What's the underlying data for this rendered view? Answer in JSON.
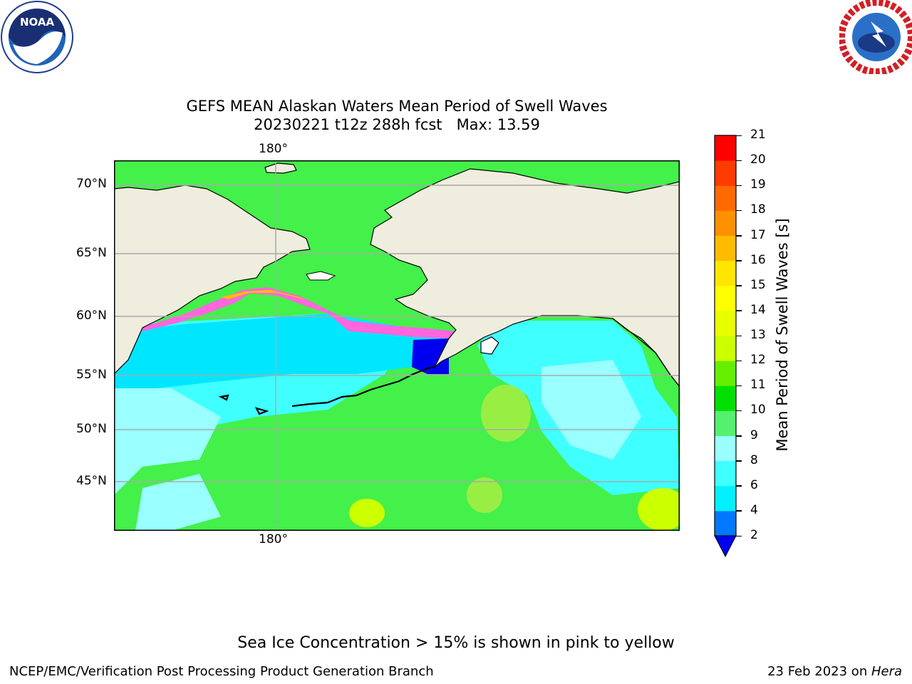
{
  "title": {
    "line1": "GEFS MEAN Alaskan Waters Mean Period of Swell Waves",
    "line2": "20230221 t12z 288h fcst   Max: 13.59"
  },
  "map": {
    "top_longitude_label": "180°",
    "bottom_longitude_label": "180°",
    "latitude_labels": [
      "70°N",
      "65°N",
      "60°N",
      "55°N",
      "50°N",
      "45°N"
    ]
  },
  "colorbar": {
    "label": "Mean Period of Swell Waves [s]",
    "ticks": [
      "2",
      "4",
      "6",
      "8",
      "9",
      "10",
      "11",
      "12",
      "13",
      "14",
      "15",
      "16",
      "17",
      "18",
      "19",
      "20",
      "21"
    ],
    "colors": [
      "#0078ff",
      "#00f0ff",
      "#40ffff",
      "#99ffff",
      "#55f070",
      "#00e000",
      "#66ee00",
      "#ccff00",
      "#e8ff00",
      "#ffff00",
      "#ffe600",
      "#ffbb00",
      "#ff9000",
      "#ff6a00",
      "#ff3b00",
      "#ff0000"
    ],
    "under_color": "#0000ee"
  },
  "logos": {
    "left": "noaa-logo",
    "right": "national-weather-service-logo",
    "left_text": "NOAA"
  },
  "footer": {
    "note": "Sea Ice Concentration > 15% is shown in pink to yellow",
    "left_credit": "NCEP/EMC/Verification Post Processing Product Generation Branch",
    "right_credit_prefix": "23 Feb 2023 on ",
    "right_credit_machine": "Hera"
  }
}
